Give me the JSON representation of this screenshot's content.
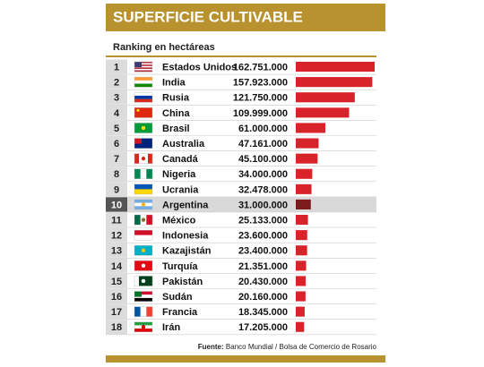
{
  "chart_data": {
    "type": "bar",
    "orientation": "horizontal",
    "title": "SUPERFICIE CULTIVABLE",
    "subtitle": "Ranking en hectáreas",
    "ranks": [
      1,
      2,
      3,
      4,
      5,
      6,
      7,
      8,
      9,
      10,
      11,
      12,
      13,
      14,
      15,
      16,
      17,
      18
    ],
    "categories": [
      "Estados Unidos",
      "India",
      "Rusia",
      "China",
      "Brasil",
      "Australia",
      "Canadá",
      "Nigeria",
      "Ucrania",
      "Argentina",
      "México",
      "Indonesia",
      "Kazajistán",
      "Turquía",
      "Pakistán",
      "Sudán",
      "Francia",
      "Irán"
    ],
    "values": [
      162751000,
      157923000,
      121750000,
      109999000,
      61000000,
      47161000,
      45100000,
      34000000,
      32478000,
      31000000,
      25133000,
      23600000,
      23400000,
      21351000,
      20430000,
      20160000,
      18345000,
      17205000
    ],
    "value_labels": [
      "162.751.000",
      "157.923.000",
      "121.750.000",
      "109.999.000",
      "61.000.000",
      "47.161.000",
      "45.100.000",
      "34.000.000",
      "32.478.000",
      "31.000.000",
      "25.133.000",
      "23.600.000",
      "23.400.000",
      "21.351.000",
      "20.430.000",
      "20.160.000",
      "18.345.000",
      "17.205.000"
    ],
    "color": "#d8232a",
    "highlight_index": 9,
    "highlight_color": "#7d1a1d",
    "source_label": "Fuente:",
    "source_text": "Banco Mundial / Bolsa de Comercio de Rosario"
  }
}
